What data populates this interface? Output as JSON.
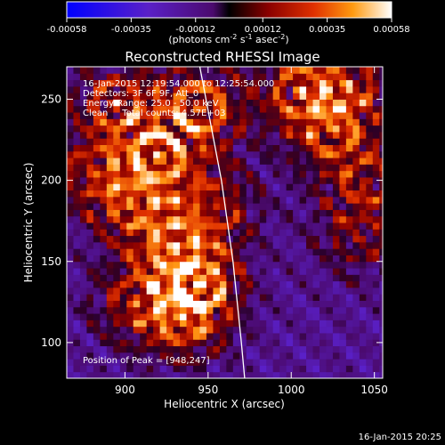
{
  "chart_data": {
    "type": "heatmap",
    "title": "Reconstructed RHESSI Image",
    "xlabel": "Heliocentric X (arcsec)",
    "ylabel": "Heliocentric Y (arcsec)",
    "xlim": [
      865,
      1055
    ],
    "ylim": [
      78,
      270
    ],
    "xticks": [
      900,
      950,
      1000,
      1050
    ],
    "yticks": [
      100,
      150,
      200,
      250
    ],
    "colorbar": {
      "min": -0.00058,
      "max": 0.00058,
      "ticks": [
        "-0.00058",
        "-0.00035",
        "-0.00012",
        "0.00012",
        "0.00035",
        "0.00058"
      ],
      "label_text": "(photons cm",
      "label_exp1": "-2",
      "label_mid": " s",
      "label_exp2": "-1",
      "label_mid2": " asec",
      "label_exp3": "-2",
      "label_end": ")"
    },
    "annotations": [
      "16-Jan-2015 12:19:54.000 to 12:25:54.000",
      "Detectors: 3F 6F 9F, Att_0",
      "Energy Range: 25.0 - 50.0 keV",
      "Clean     Total counts: 4.57E+03"
    ],
    "peak_label": "Position of Peak = [948,247]",
    "peak": [
      948,
      247
    ],
    "limb_curve": [
      [
        945,
        270
      ],
      [
        958,
        200
      ],
      [
        965,
        150
      ],
      [
        970,
        100
      ],
      [
        972,
        78
      ]
    ],
    "hotspots": [
      {
        "x": 895,
        "y": 248,
        "amp": 0.8
      },
      {
        "x": 880,
        "y": 205,
        "amp": 0.6
      },
      {
        "x": 920,
        "y": 215,
        "amp": 0.9
      },
      {
        "x": 945,
        "y": 245,
        "amp": 1.0
      },
      {
        "x": 905,
        "y": 185,
        "amp": 0.7
      },
      {
        "x": 930,
        "y": 160,
        "amp": 0.8
      },
      {
        "x": 945,
        "y": 135,
        "amp": 0.9
      },
      {
        "x": 935,
        "y": 115,
        "amp": 0.8
      },
      {
        "x": 905,
        "y": 125,
        "amp": 0.6
      },
      {
        "x": 955,
        "y": 185,
        "amp": 0.6
      },
      {
        "x": 1005,
        "y": 255,
        "amp": 0.8
      },
      {
        "x": 1035,
        "y": 260,
        "amp": 0.7
      },
      {
        "x": 1025,
        "y": 230,
        "amp": 0.7
      },
      {
        "x": 1045,
        "y": 200,
        "amp": 0.6
      },
      {
        "x": 1040,
        "y": 165,
        "amp": 0.5
      }
    ]
  },
  "footer": {
    "timestamp": "16-Jan-2015 20:25"
  }
}
